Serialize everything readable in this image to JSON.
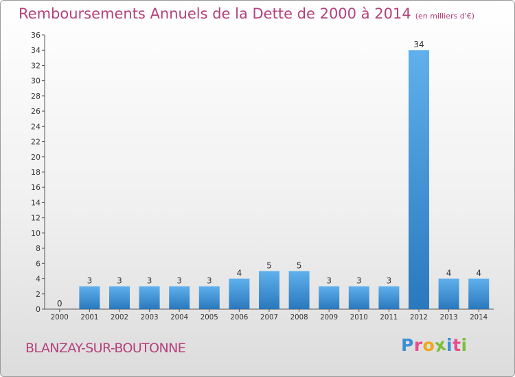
{
  "header": {
    "title": "Remboursements Annuels de la Dette de 2000 à 2014",
    "unit": "(en milliers d'€)"
  },
  "footer": {
    "place": "BLANZAY-SUR-BOUTONNE",
    "logo_letters": [
      "P",
      "r",
      "o",
      "x",
      "i",
      "t",
      "i"
    ]
  },
  "colors": {
    "title": "#b5407a",
    "bar_light": "#5fb0ec",
    "bar_dark": "#2a78bd",
    "logo": [
      "#3a8fd6",
      "#e84c8a",
      "#f2a51a",
      "#7cbf3a",
      "#3a8fd6",
      "#e84c8a",
      "#7cbf3a"
    ]
  },
  "chart_data": {
    "type": "bar",
    "title": "Remboursements Annuels de la Dette de 2000 à 2014",
    "subtitle": "(en milliers d'€)",
    "categories": [
      "2000",
      "2001",
      "2002",
      "2003",
      "2004",
      "2005",
      "2006",
      "2007",
      "2008",
      "2009",
      "2010",
      "2011",
      "2012",
      "2013",
      "2014"
    ],
    "values": [
      0,
      3,
      3,
      3,
      3,
      3,
      4,
      5,
      5,
      3,
      3,
      3,
      34,
      4,
      4
    ],
    "ylim": [
      0,
      36
    ],
    "yticks": [
      0,
      2,
      4,
      6,
      8,
      10,
      12,
      14,
      16,
      18,
      20,
      22,
      24,
      26,
      28,
      30,
      32,
      34,
      36
    ],
    "grid": false,
    "legend": "none"
  }
}
